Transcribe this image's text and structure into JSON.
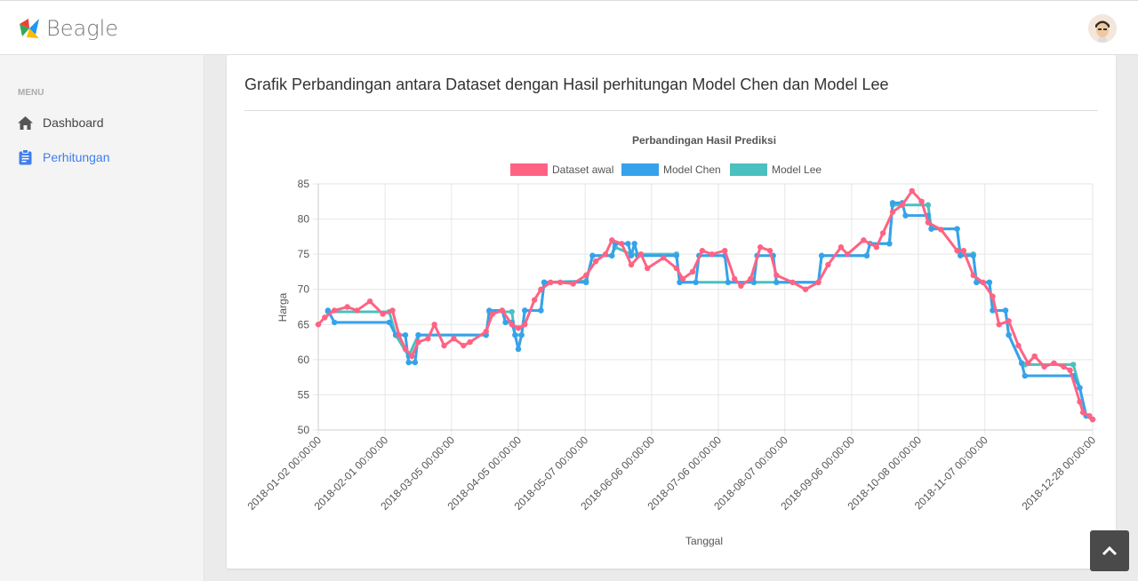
{
  "header": {
    "brand": "Beagle",
    "avatar_icon": "user-avatar"
  },
  "sidebar": {
    "menu_label": "MENU",
    "items": [
      {
        "label": "Dashboard",
        "icon": "home-icon"
      },
      {
        "label": "Perhitungan",
        "icon": "clipboard-icon",
        "active": true
      }
    ]
  },
  "card": {
    "title": "Grafik Perbandingan antara Dataset dengan Hasil perhitungan Model Chen dan Model Lee"
  },
  "colors": {
    "dataset": "#ff6384",
    "chen": "#36a2eb",
    "lee": "#4bc0c0",
    "accent": "#3f7ef0"
  },
  "chart_data": {
    "type": "line",
    "title": "Perbandingan Hasil Prediksi",
    "xlabel": "Tanggal",
    "ylabel": "Harga",
    "ylim": [
      50,
      85
    ],
    "yticks": [
      50,
      55,
      60,
      65,
      70,
      75,
      80,
      85
    ],
    "xlim": [
      0,
      240
    ],
    "x_unit": "trading day index",
    "grid": true,
    "legend_position": "top",
    "xticks": [
      {
        "x": 0,
        "label": "2018-01-02 00:00:00"
      },
      {
        "x": 20.7,
        "label": "2018-02-01 00:00:00"
      },
      {
        "x": 41.3,
        "label": "2018-03-05 00:00:00"
      },
      {
        "x": 62,
        "label": "2018-04-05 00:00:00"
      },
      {
        "x": 82.7,
        "label": "2018-05-07 00:00:00"
      },
      {
        "x": 103.3,
        "label": "2018-06-06 00:00:00"
      },
      {
        "x": 124,
        "label": "2018-07-06 00:00:00"
      },
      {
        "x": 144.6,
        "label": "2018-08-07 00:00:00"
      },
      {
        "x": 165.3,
        "label": "2018-09-06 00:00:00"
      },
      {
        "x": 186,
        "label": "2018-10-08 00:00:00"
      },
      {
        "x": 206.6,
        "label": "2018-11-07 00:00:00"
      },
      {
        "x": 240,
        "label": "2018-12-28 00:00:00"
      }
    ],
    "series": [
      {
        "name": "Model Lee",
        "key": "lee",
        "points": [
          [
            3,
            66.8
          ],
          [
            22,
            66.8
          ],
          [
            24,
            63.5
          ],
          [
            28,
            60.5
          ],
          [
            31,
            63.5
          ],
          [
            52,
            63.5
          ],
          [
            53,
            66.8
          ],
          [
            60,
            66.8
          ],
          [
            61,
            63.5
          ],
          [
            63,
            63.5
          ],
          [
            64,
            67
          ],
          [
            69,
            67
          ],
          [
            70,
            71
          ],
          [
            83,
            71.2
          ],
          [
            85,
            74.8
          ],
          [
            91,
            74.8
          ],
          [
            92,
            76
          ],
          [
            97,
            75
          ],
          [
            111,
            75
          ],
          [
            112,
            71
          ],
          [
            155,
            71
          ],
          [
            156,
            74.8
          ],
          [
            170,
            74.8
          ],
          [
            171,
            76.5
          ],
          [
            177,
            76.5
          ],
          [
            178,
            82
          ],
          [
            189,
            82
          ],
          [
            190,
            78.6
          ],
          [
            198,
            78.6
          ],
          [
            199,
            75
          ],
          [
            203,
            75
          ],
          [
            204,
            71
          ],
          [
            208,
            71
          ],
          [
            209,
            67
          ],
          [
            213,
            67
          ],
          [
            214,
            63.5
          ],
          [
            218,
            59.5
          ],
          [
            219,
            59.3
          ],
          [
            234,
            59.3
          ],
          [
            236,
            56
          ],
          [
            238,
            52
          ],
          [
            240,
            51.5
          ]
        ]
      },
      {
        "name": "Model Chen",
        "key": "chen",
        "points": [
          [
            3,
            67
          ],
          [
            5,
            65.3
          ],
          [
            22,
            65.3
          ],
          [
            24,
            63.5
          ],
          [
            27,
            63.5
          ],
          [
            28,
            59.6
          ],
          [
            30,
            59.6
          ],
          [
            31,
            63.5
          ],
          [
            52,
            63.5
          ],
          [
            53,
            67
          ],
          [
            57,
            67
          ],
          [
            58,
            65.3
          ],
          [
            60,
            65.3
          ],
          [
            61,
            63.5
          ],
          [
            62,
            61.5
          ],
          [
            63,
            63.5
          ],
          [
            64,
            67
          ],
          [
            69,
            67
          ],
          [
            70,
            71
          ],
          [
            83,
            71
          ],
          [
            85,
            74.8
          ],
          [
            91,
            74.8
          ],
          [
            92,
            76.5
          ],
          [
            96,
            76.5
          ],
          [
            97,
            74.8
          ],
          [
            98,
            76.5
          ],
          [
            99,
            74.8
          ],
          [
            111,
            74.8
          ],
          [
            112,
            71
          ],
          [
            117,
            71
          ],
          [
            118,
            74.8
          ],
          [
            126,
            74.8
          ],
          [
            127,
            71
          ],
          [
            135,
            71
          ],
          [
            136,
            74.8
          ],
          [
            141,
            74.8
          ],
          [
            142,
            71
          ],
          [
            155,
            71
          ],
          [
            156,
            74.8
          ],
          [
            170,
            74.8
          ],
          [
            171,
            76.5
          ],
          [
            177,
            76.5
          ],
          [
            178,
            82.3
          ],
          [
            181,
            82.3
          ],
          [
            182,
            80.5
          ],
          [
            189,
            80.5
          ],
          [
            190,
            78.6
          ],
          [
            198,
            78.6
          ],
          [
            199,
            74.8
          ],
          [
            203,
            74.8
          ],
          [
            204,
            71
          ],
          [
            208,
            71
          ],
          [
            209,
            67
          ],
          [
            213,
            67
          ],
          [
            214,
            63.5
          ],
          [
            218,
            59.5
          ],
          [
            219,
            57.7
          ],
          [
            234,
            57.7
          ],
          [
            236,
            56
          ],
          [
            238,
            52
          ],
          [
            240,
            51.5
          ]
        ]
      },
      {
        "name": "Dataset awal",
        "key": "dataset",
        "points": [
          [
            0,
            65
          ],
          [
            2,
            66
          ],
          [
            5,
            67
          ],
          [
            9,
            67.5
          ],
          [
            12,
            67
          ],
          [
            16,
            68.3
          ],
          [
            20,
            66.5
          ],
          [
            23,
            67
          ],
          [
            25,
            63.5
          ],
          [
            27,
            61.5
          ],
          [
            29,
            60.5
          ],
          [
            31,
            62.5
          ],
          [
            34,
            63
          ],
          [
            36,
            65
          ],
          [
            39,
            62
          ],
          [
            42,
            63
          ],
          [
            45,
            62
          ],
          [
            47,
            62.5
          ],
          [
            52,
            64
          ],
          [
            54,
            66.5
          ],
          [
            57,
            67
          ],
          [
            60,
            65
          ],
          [
            62,
            64.5
          ],
          [
            64,
            65
          ],
          [
            67,
            68.5
          ],
          [
            69,
            70
          ],
          [
            72,
            71
          ],
          [
            75,
            71
          ],
          [
            79,
            70.8
          ],
          [
            83,
            72
          ],
          [
            86,
            74
          ],
          [
            89,
            75
          ],
          [
            91,
            77
          ],
          [
            94,
            76.5
          ],
          [
            97,
            73.5
          ],
          [
            100,
            75
          ],
          [
            102,
            73
          ],
          [
            107,
            74.5
          ],
          [
            111,
            73
          ],
          [
            113,
            71.5
          ],
          [
            116,
            72.5
          ],
          [
            119,
            75.5
          ],
          [
            122,
            75
          ],
          [
            126,
            75.5
          ],
          [
            129,
            71.5
          ],
          [
            131,
            70.5
          ],
          [
            134,
            71.5
          ],
          [
            137,
            76
          ],
          [
            140,
            75.5
          ],
          [
            142,
            72
          ],
          [
            147,
            71
          ],
          [
            151,
            70
          ],
          [
            155,
            71
          ],
          [
            158,
            73.5
          ],
          [
            162,
            76
          ],
          [
            164,
            75
          ],
          [
            169,
            77
          ],
          [
            173,
            76
          ],
          [
            175,
            78
          ],
          [
            178,
            81
          ],
          [
            181,
            82
          ],
          [
            184,
            84
          ],
          [
            187,
            82.5
          ],
          [
            189,
            79.5
          ],
          [
            193,
            78.5
          ],
          [
            198,
            75.5
          ],
          [
            200,
            75.5
          ],
          [
            203,
            72
          ],
          [
            206,
            71
          ],
          [
            209,
            69
          ],
          [
            211,
            65
          ],
          [
            214,
            65.5
          ],
          [
            217,
            62
          ],
          [
            220,
            59.5
          ],
          [
            222,
            60.5
          ],
          [
            225,
            59
          ],
          [
            228,
            59.5
          ],
          [
            231,
            59
          ],
          [
            233,
            58.5
          ],
          [
            236,
            54
          ],
          [
            237,
            52.5
          ],
          [
            239,
            52
          ],
          [
            240,
            51.5
          ]
        ]
      }
    ],
    "legend": [
      "Dataset awal",
      "Model Chen",
      "Model Lee"
    ]
  }
}
